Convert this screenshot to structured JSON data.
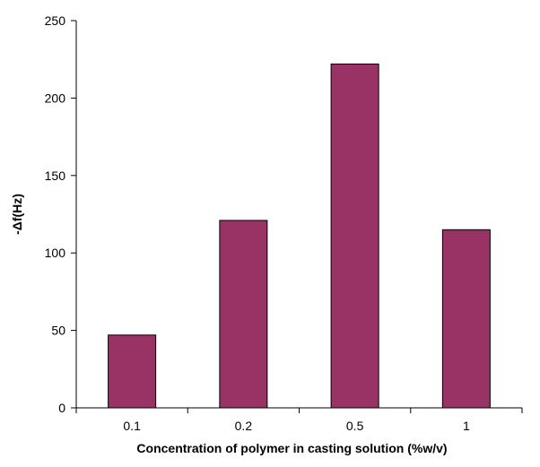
{
  "chart_data": {
    "type": "bar",
    "title": "",
    "xlabel": "Concentration of polymer in casting solution (%w/v)",
    "ylabel": "-Δf(Hz)",
    "categories": [
      "0.1",
      "0.2",
      "0.5",
      "1"
    ],
    "values": [
      47,
      121,
      222,
      115
    ],
    "ylim": [
      0,
      250
    ],
    "yticks": [
      0,
      50,
      100,
      150,
      200,
      250
    ],
    "grid": false,
    "legend": "none",
    "bar_color": "#993366",
    "bar_border_color": "#000000"
  }
}
